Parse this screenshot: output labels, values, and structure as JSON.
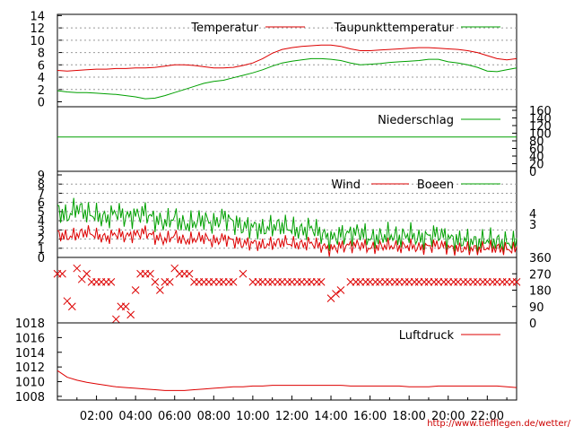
{
  "colors": {
    "temperature": "#dd0000",
    "dewpoint": "#00a000",
    "precipitation": "#00a000",
    "wind": "#dd0000",
    "gusts": "#00a000",
    "direction": "#dd0000",
    "pressure": "#dd0000",
    "credit": "#cc0000"
  },
  "credit": "http://www.tiefflegen.de/wetter/",
  "x_time_labels": [
    "02:00",
    "04:00",
    "06:00",
    "08:00",
    "10:00",
    "12:00",
    "14:00",
    "16:00",
    "18:00",
    "20:00",
    "22:00"
  ],
  "chart_data": [
    {
      "type": "line",
      "id": "temperature",
      "x_hours": [
        0,
        0.5,
        1,
        1.5,
        2,
        2.5,
        3,
        3.5,
        4,
        4.5,
        5,
        5.5,
        6,
        6.5,
        7,
        7.5,
        8,
        8.5,
        9,
        9.5,
        10,
        10.5,
        11,
        11.5,
        12,
        12.5,
        13,
        13.5,
        14,
        14.5,
        15,
        15.5,
        16,
        16.5,
        17,
        17.5,
        18,
        18.5,
        19,
        19.5,
        20,
        20.5,
        21,
        21.5,
        22,
        22.5,
        23,
        23.5
      ],
      "ylim": [
        0,
        14
      ],
      "y_ticks": [
        0,
        2,
        4,
        6,
        8,
        10,
        12,
        14
      ],
      "grid": true,
      "legend_position": "top-right",
      "series": [
        {
          "name": "Temperatur",
          "values": [
            5.1,
            5.0,
            5.1,
            5.2,
            5.3,
            5.3,
            5.4,
            5.4,
            5.5,
            5.5,
            5.6,
            5.8,
            6.0,
            6.0,
            5.9,
            5.7,
            5.5,
            5.5,
            5.6,
            5.9,
            6.3,
            7.0,
            7.9,
            8.5,
            8.8,
            9.0,
            9.1,
            9.2,
            9.2,
            9.0,
            8.6,
            8.3,
            8.3,
            8.4,
            8.5,
            8.6,
            8.7,
            8.8,
            8.8,
            8.7,
            8.6,
            8.5,
            8.3,
            8.0,
            7.5,
            7.0,
            6.8,
            7.0
          ]
        },
        {
          "name": "Taupunkttemperatur",
          "values": [
            1.8,
            1.6,
            1.5,
            1.5,
            1.4,
            1.3,
            1.2,
            1.0,
            0.8,
            0.5,
            0.6,
            1.0,
            1.5,
            2.0,
            2.5,
            3.0,
            3.3,
            3.5,
            3.9,
            4.3,
            4.7,
            5.2,
            5.8,
            6.3,
            6.6,
            6.8,
            7.0,
            7.0,
            6.9,
            6.7,
            6.3,
            6.0,
            6.1,
            6.2,
            6.4,
            6.5,
            6.6,
            6.7,
            6.9,
            6.9,
            6.5,
            6.3,
            6.0,
            5.6,
            5.0,
            4.9,
            5.2,
            5.5
          ]
        }
      ]
    },
    {
      "type": "line",
      "id": "precipitation",
      "x_hours": [
        0,
        23.5
      ],
      "ylim": [
        0,
        160
      ],
      "y_ticks": [
        0,
        20,
        40,
        60,
        80,
        100,
        120,
        140,
        160
      ],
      "legend_position": "top-right",
      "series": [
        {
          "name": "Niederschlag",
          "values": [
            90,
            90
          ]
        }
      ]
    },
    {
      "type": "line",
      "id": "wind",
      "x_hours": [
        0,
        0.5,
        1,
        1.5,
        2,
        2.5,
        3,
        3.5,
        4,
        4.5,
        5,
        5.5,
        6,
        6.5,
        7,
        7.5,
        8,
        8.5,
        9,
        9.5,
        10,
        10.5,
        11,
        11.5,
        12,
        12.5,
        13,
        13.5,
        14,
        14.5,
        15,
        15.5,
        16,
        16.5,
        17,
        17.5,
        18,
        18.5,
        19,
        19.5,
        20,
        20.5,
        21,
        21.5,
        22,
        22.5,
        23,
        23.5
      ],
      "ylim": [
        0,
        9
      ],
      "y_ticks": [
        0,
        1,
        2,
        3,
        4,
        5,
        6,
        7,
        8,
        9
      ],
      "right_ticks": [
        3,
        4
      ],
      "legend_position": "top-right",
      "series": [
        {
          "name": "Wind",
          "values": [
            2.6,
            2.2,
            2.5,
            2.8,
            2.4,
            2.1,
            2.6,
            2.3,
            2.5,
            2.8,
            2.2,
            1.9,
            2.4,
            1.8,
            2.0,
            2.2,
            1.7,
            2.1,
            1.8,
            1.5,
            1.6,
            1.3,
            1.5,
            1.7,
            1.5,
            1.4,
            1.6,
            1.2,
            0.9,
            1.2,
            1.3,
            1.4,
            1.0,
            1.2,
            1.3,
            1.1,
            1.3,
            1.0,
            1.2,
            1.4,
            1.1,
            0.9,
            1.0,
            0.9,
            1.1,
            1.0,
            0.9,
            0.9
          ]
        },
        {
          "name": "Boeen",
          "values": [
            5.2,
            4.4,
            5.5,
            4.8,
            4.6,
            4.2,
            5.0,
            4.4,
            4.6,
            4.9,
            4.1,
            3.8,
            4.4,
            3.5,
            3.8,
            4.2,
            3.6,
            4.5,
            3.8,
            3.3,
            3.4,
            3.0,
            3.4,
            3.5,
            3.1,
            2.9,
            3.3,
            2.6,
            2.0,
            2.5,
            2.6,
            2.8,
            2.0,
            2.2,
            2.5,
            2.1,
            2.6,
            2.0,
            2.3,
            2.6,
            2.1,
            1.8,
            1.9,
            1.6,
            2.0,
            1.7,
            1.6,
            1.6
          ]
        }
      ]
    },
    {
      "type": "scatter",
      "id": "direction",
      "x_hours": [
        0,
        0.25,
        0.5,
        0.75,
        1,
        1.25,
        1.5,
        1.75,
        2,
        2.25,
        2.5,
        2.75,
        3,
        3.25,
        3.5,
        3.75,
        4,
        4.25,
        4.5,
        4.75,
        5,
        5.25,
        5.5,
        5.75,
        6,
        6.25,
        6.5,
        6.75,
        7,
        7.25,
        7.5,
        7.75,
        8,
        8.5,
        9,
        9.5,
        10,
        10.5,
        11,
        11.5,
        12,
        12.5,
        13,
        13.5,
        14,
        14.25,
        14.5,
        15,
        15.5,
        16,
        16.5,
        17,
        17.5,
        18,
        18.5,
        19,
        19.5,
        20,
        20.5,
        21,
        21.5,
        22,
        22.5,
        23,
        23.5
      ],
      "values": [
        270,
        270,
        120,
        90,
        300,
        240,
        270,
        225,
        225,
        225,
        225,
        225,
        20,
        90,
        90,
        45,
        180,
        270,
        270,
        270,
        225,
        180,
        225,
        225,
        300,
        270,
        270,
        270,
        225,
        225,
        225,
        225,
        225,
        225,
        225,
        270,
        225,
        225,
        225,
        225,
        225,
        225,
        225,
        225,
        135,
        160,
        180,
        225,
        225,
        225,
        225,
        225,
        225,
        225,
        225,
        225,
        225,
        225,
        225,
        225,
        225,
        225,
        225,
        225,
        225
      ],
      "ylim": [
        0,
        360
      ],
      "y_ticks": [
        0,
        90,
        180,
        270,
        360
      ],
      "marker": "x"
    },
    {
      "type": "line",
      "id": "pressure",
      "x_hours": [
        0,
        0.5,
        1,
        1.5,
        2,
        2.5,
        3,
        3.5,
        4,
        4.5,
        5,
        5.5,
        6,
        6.5,
        7,
        7.5,
        8,
        8.5,
        9,
        9.5,
        10,
        10.5,
        11,
        11.5,
        12,
        12.5,
        13,
        13.5,
        14,
        14.5,
        15,
        15.5,
        16,
        16.5,
        17,
        17.5,
        18,
        18.5,
        19,
        19.5,
        20,
        20.5,
        21,
        21.5,
        22,
        22.5,
        23,
        23.5
      ],
      "ylim": [
        1007.5,
        1018
      ],
      "y_ticks": [
        1008,
        1010,
        1012,
        1014,
        1016,
        1018
      ],
      "legend_position": "top-right",
      "series": [
        {
          "name": "Luftdruck",
          "values": [
            1011.5,
            1010.6,
            1010.2,
            1009.9,
            1009.7,
            1009.5,
            1009.3,
            1009.2,
            1009.1,
            1009.0,
            1008.9,
            1008.8,
            1008.8,
            1008.8,
            1008.9,
            1009.0,
            1009.1,
            1009.2,
            1009.3,
            1009.3,
            1009.4,
            1009.4,
            1009.5,
            1009.5,
            1009.5,
            1009.5,
            1009.5,
            1009.5,
            1009.5,
            1009.5,
            1009.4,
            1009.4,
            1009.4,
            1009.4,
            1009.4,
            1009.4,
            1009.3,
            1009.3,
            1009.3,
            1009.4,
            1009.4,
            1009.4,
            1009.4,
            1009.4,
            1009.4,
            1009.4,
            1009.3,
            1009.2
          ]
        }
      ]
    }
  ]
}
